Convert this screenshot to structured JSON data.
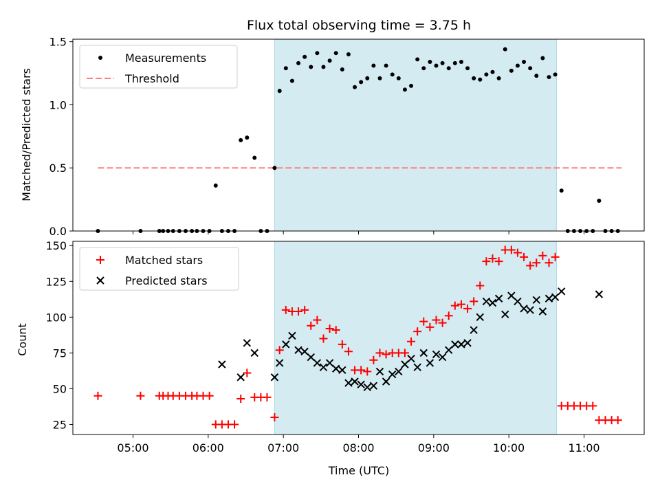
{
  "chart_data": {
    "title": "Flux total observing time = 3.75 h",
    "xlabel": "Time (UTC)",
    "x_ticks": [
      "05:00",
      "06:00",
      "07:00",
      "08:00",
      "09:00",
      "10:00",
      "11:00"
    ],
    "x_range": [
      "04:12",
      "11:48"
    ],
    "observing_window": {
      "start": "06:53",
      "end": "10:38",
      "color": "#add8e6"
    },
    "panels": [
      {
        "type": "scatter",
        "ylabel": "Matched/Predicted stars",
        "ylim": [
          0,
          1.52
        ],
        "y_ticks": [
          "0.0",
          "0.5",
          "1.0",
          "1.5"
        ],
        "legend": {
          "position": "top-left",
          "entries": [
            "Measurements",
            "Threshold"
          ]
        },
        "threshold": {
          "name": "Threshold",
          "value": 0.5,
          "x_start": "04:32",
          "x_end": "11:30",
          "color": "#ff7f7f",
          "style": "dashed"
        },
        "series": [
          {
            "name": "Measurements",
            "marker": "dot",
            "color": "#000000",
            "x": [
              "04:32",
              "05:06",
              "05:21",
              "05:24",
              "05:28",
              "05:32",
              "05:37",
              "05:42",
              "05:47",
              "05:51",
              "05:56",
              "06:01",
              "06:06",
              "06:11",
              "06:16",
              "06:21",
              "06:26",
              "06:31",
              "06:37",
              "06:42",
              "06:47",
              "06:53",
              "06:57",
              "07:02",
              "07:07",
              "07:12",
              "07:17",
              "07:22",
              "07:27",
              "07:32",
              "07:37",
              "07:42",
              "07:47",
              "07:52",
              "07:57",
              "08:02",
              "08:07",
              "08:12",
              "08:17",
              "08:22",
              "08:27",
              "08:32",
              "08:37",
              "08:42",
              "08:47",
              "08:52",
              "08:57",
              "09:02",
              "09:07",
              "09:12",
              "09:17",
              "09:22",
              "09:27",
              "09:32",
              "09:37",
              "09:42",
              "09:47",
              "09:52",
              "09:57",
              "10:02",
              "10:07",
              "10:12",
              "10:17",
              "10:22",
              "10:27",
              "10:32",
              "10:37",
              "10:42",
              "10:47",
              "10:52",
              "10:57",
              "11:02",
              "11:07",
              "11:12",
              "11:17",
              "11:22",
              "11:27"
            ],
            "y": [
              0,
              0,
              0,
              0,
              0,
              0,
              0,
              0,
              0,
              0,
              0,
              0,
              0.36,
              0,
              0,
              0,
              0.72,
              0.74,
              0.58,
              0,
              0,
              0.5,
              1.11,
              1.29,
              1.19,
              1.33,
              1.38,
              1.3,
              1.41,
              1.3,
              1.35,
              1.41,
              1.28,
              1.4,
              1.14,
              1.18,
              1.21,
              1.31,
              1.21,
              1.31,
              1.24,
              1.21,
              1.12,
              1.15,
              1.36,
              1.29,
              1.34,
              1.31,
              1.33,
              1.29,
              1.33,
              1.34,
              1.29,
              1.21,
              1.2,
              1.24,
              1.26,
              1.21,
              1.44,
              1.27,
              1.31,
              1.34,
              1.29,
              1.23,
              1.37,
              1.22,
              1.24,
              0.32,
              0,
              0,
              0,
              0,
              0,
              0.24,
              0,
              0,
              0
            ]
          }
        ]
      },
      {
        "type": "scatter",
        "ylabel": "Count",
        "ylim": [
          18,
          153
        ],
        "y_ticks": [
          "25",
          "50",
          "75",
          "100",
          "125",
          "150"
        ],
        "legend": {
          "position": "top-left",
          "entries": [
            "Matched stars",
            "Predicted stars"
          ]
        },
        "series": [
          {
            "name": "Matched stars",
            "marker": "plus",
            "color": "#ff0000",
            "x": [
              "04:32",
              "05:06",
              "05:21",
              "05:24",
              "05:28",
              "05:32",
              "05:37",
              "05:42",
              "05:47",
              "05:51",
              "05:56",
              "06:01",
              "06:06",
              "06:11",
              "06:16",
              "06:21",
              "06:26",
              "06:31",
              "06:37",
              "06:42",
              "06:47",
              "06:53",
              "06:57",
              "07:02",
              "07:07",
              "07:12",
              "07:17",
              "07:22",
              "07:27",
              "07:32",
              "07:37",
              "07:42",
              "07:47",
              "07:52",
              "07:57",
              "08:02",
              "08:07",
              "08:12",
              "08:17",
              "08:22",
              "08:27",
              "08:32",
              "08:37",
              "08:42",
              "08:47",
              "08:52",
              "08:57",
              "09:02",
              "09:07",
              "09:12",
              "09:17",
              "09:22",
              "09:27",
              "09:32",
              "09:37",
              "09:42",
              "09:47",
              "09:52",
              "09:57",
              "10:02",
              "10:07",
              "10:12",
              "10:17",
              "10:22",
              "10:27",
              "10:32",
              "10:37",
              "10:42",
              "10:47",
              "10:52",
              "10:57",
              "11:02",
              "11:07",
              "11:12",
              "11:17",
              "11:22",
              "11:27"
            ],
            "y": [
              45,
              45,
              45,
              45,
              45,
              45,
              45,
              45,
              45,
              45,
              45,
              45,
              25,
              25,
              25,
              25,
              43,
              61,
              44,
              44,
              44,
              30,
              77,
              105,
              104,
              104,
              105,
              94,
              98,
              85,
              92,
              91,
              81,
              76,
              63,
              63,
              62,
              70,
              75,
              74,
              75,
              75,
              75,
              83,
              90,
              97,
              93,
              98,
              96,
              101,
              108,
              109,
              106,
              111,
              122,
              139,
              141,
              139,
              147,
              147,
              145,
              142,
              136,
              138,
              143,
              138,
              142,
              38,
              38,
              38,
              38,
              38,
              38,
              28,
              28,
              28,
              28
            ]
          },
          {
            "name": "Predicted stars",
            "marker": "x",
            "color": "#000000",
            "x": [
              "06:11",
              "06:26",
              "06:31",
              "06:37",
              "06:53",
              "06:57",
              "07:02",
              "07:07",
              "07:12",
              "07:17",
              "07:22",
              "07:27",
              "07:32",
              "07:37",
              "07:42",
              "07:47",
              "07:52",
              "07:57",
              "08:02",
              "08:07",
              "08:12",
              "08:17",
              "08:22",
              "08:27",
              "08:32",
              "08:37",
              "08:42",
              "08:47",
              "08:52",
              "08:57",
              "09:02",
              "09:07",
              "09:12",
              "09:17",
              "09:22",
              "09:27",
              "09:32",
              "09:37",
              "09:42",
              "09:47",
              "09:52",
              "09:57",
              "10:02",
              "10:07",
              "10:12",
              "10:17",
              "10:22",
              "10:27",
              "10:32",
              "10:37",
              "10:42",
              "11:12"
            ],
            "y": [
              67,
              58,
              82,
              75,
              58,
              68,
              81,
              87,
              77,
              76,
              72,
              68,
              65,
              68,
              64,
              63,
              54,
              55,
              53,
              51,
              52,
              62,
              55,
              60,
              62,
              67,
              71,
              65,
              75,
              68,
              74,
              72,
              77,
              81,
              81,
              82,
              91,
              100,
              111,
              110,
              113,
              102,
              115,
              111,
              106,
              105,
              112,
              104,
              113,
              114,
              118,
              116
            ]
          }
        ]
      }
    ]
  }
}
